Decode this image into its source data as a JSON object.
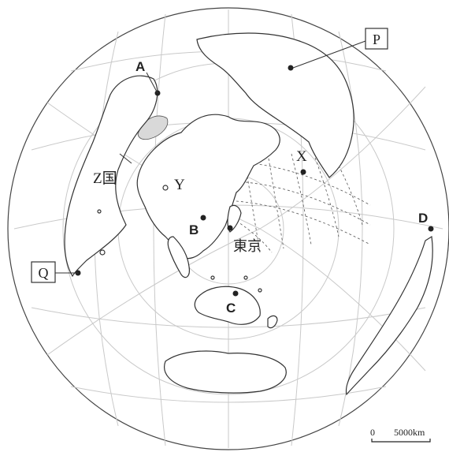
{
  "map": {
    "center_label": "東京",
    "country_label": "Z国",
    "point_labels": [
      "A",
      "B",
      "C",
      "D",
      "X",
      "Y"
    ],
    "boxed_labels": [
      "P",
      "Q"
    ],
    "scale": {
      "zero": "0",
      "distance": "5000km"
    }
  }
}
